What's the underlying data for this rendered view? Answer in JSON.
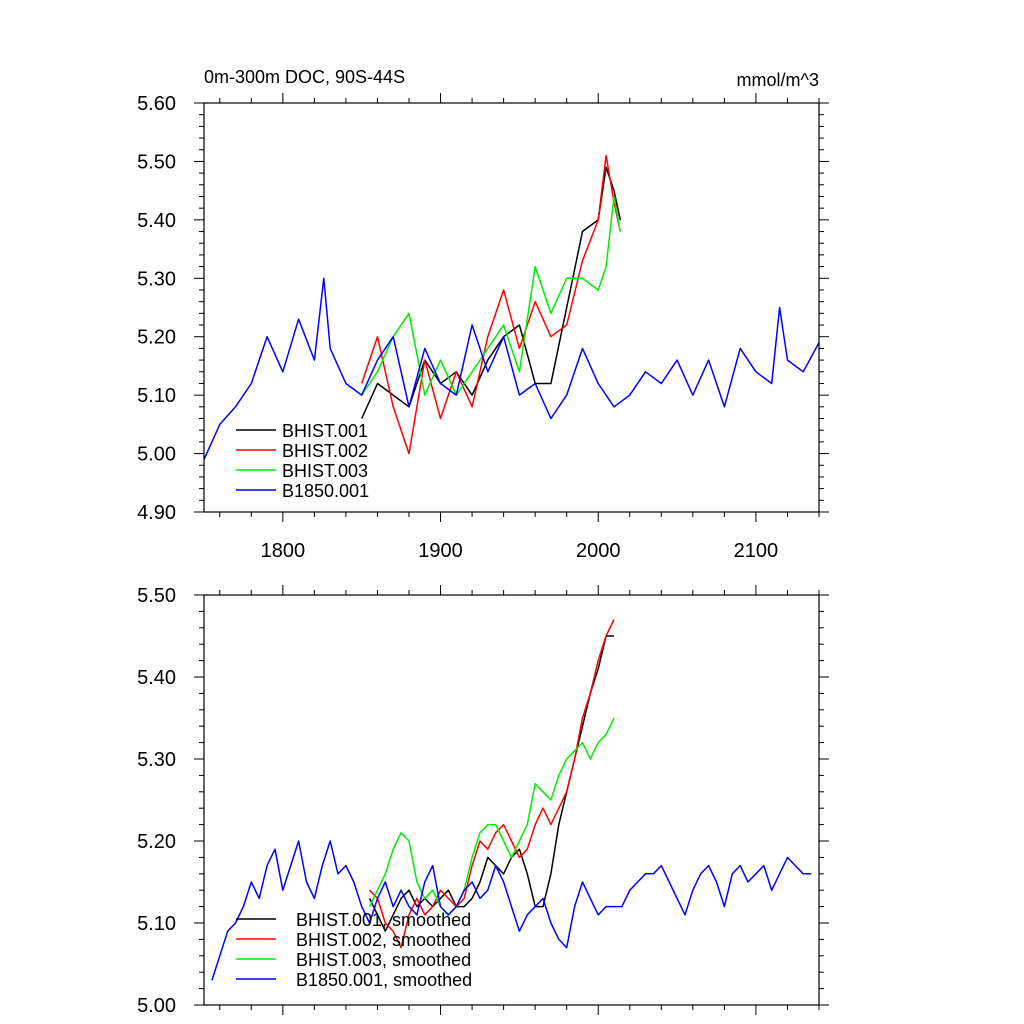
{
  "chart_data": [
    {
      "type": "line",
      "title": "0m-300m DOC, 90S-44S",
      "units": "mmol/m^3",
      "xlim": [
        1750,
        2140
      ],
      "ylim": [
        4.9,
        5.6
      ],
      "xticks": [
        1800,
        1900,
        2000,
        2100
      ],
      "xtick_labels": [
        "1800",
        "1900",
        "2000",
        "2100"
      ],
      "yticks": [
        4.9,
        5.0,
        5.1,
        5.2,
        5.3,
        5.4,
        5.5,
        5.6
      ],
      "ytick_labels": [
        "4.90",
        "5.00",
        "5.10",
        "5.20",
        "5.30",
        "5.40",
        "5.50",
        "5.60"
      ],
      "legend_position": "bottom-left",
      "series": [
        {
          "name": "BHIST.001",
          "color": "#000000",
          "x": [
            1850,
            1860,
            1870,
            1880,
            1890,
            1900,
            1910,
            1920,
            1930,
            1940,
            1950,
            1960,
            1970,
            1980,
            1990,
            2000,
            2005,
            2010,
            2014
          ],
          "values": [
            5.06,
            5.12,
            5.1,
            5.08,
            5.16,
            5.12,
            5.14,
            5.1,
            5.16,
            5.2,
            5.22,
            5.12,
            5.12,
            5.25,
            5.38,
            5.4,
            5.49,
            5.45,
            5.4
          ]
        },
        {
          "name": "BHIST.002",
          "color": "#ff0000",
          "x": [
            1850,
            1860,
            1870,
            1880,
            1890,
            1900,
            1910,
            1920,
            1930,
            1940,
            1950,
            1960,
            1970,
            1980,
            1990,
            2000,
            2005,
            2010,
            2014
          ],
          "values": [
            5.12,
            5.2,
            5.08,
            5.0,
            5.16,
            5.06,
            5.14,
            5.08,
            5.2,
            5.28,
            5.18,
            5.26,
            5.2,
            5.22,
            5.33,
            5.4,
            5.51,
            5.43,
            5.38
          ]
        },
        {
          "name": "BHIST.003",
          "color": "#00ee00",
          "x": [
            1850,
            1860,
            1870,
            1880,
            1890,
            1900,
            1910,
            1920,
            1930,
            1940,
            1950,
            1960,
            1970,
            1980,
            1990,
            2000,
            2005,
            2010,
            2014
          ],
          "values": [
            5.1,
            5.14,
            5.2,
            5.24,
            5.1,
            5.16,
            5.1,
            5.14,
            5.18,
            5.22,
            5.14,
            5.32,
            5.24,
            5.3,
            5.3,
            5.28,
            5.32,
            5.44,
            5.38
          ]
        },
        {
          "name": "B1850.001",
          "color": "#0000ff",
          "x": [
            1750,
            1760,
            1770,
            1780,
            1790,
            1800,
            1810,
            1820,
            1826,
            1830,
            1840,
            1850,
            1860,
            1870,
            1880,
            1890,
            1900,
            1910,
            1920,
            1930,
            1940,
            1950,
            1960,
            1970,
            1980,
            1990,
            2000,
            2010,
            2020,
            2030,
            2040,
            2050,
            2060,
            2070,
            2080,
            2090,
            2100,
            2110,
            2115,
            2120,
            2130,
            2140
          ],
          "values": [
            4.99,
            5.05,
            5.08,
            5.12,
            5.2,
            5.14,
            5.23,
            5.16,
            5.3,
            5.18,
            5.12,
            5.1,
            5.16,
            5.2,
            5.08,
            5.18,
            5.12,
            5.1,
            5.22,
            5.14,
            5.2,
            5.1,
            5.12,
            5.06,
            5.1,
            5.18,
            5.12,
            5.08,
            5.1,
            5.14,
            5.12,
            5.16,
            5.1,
            5.16,
            5.08,
            5.18,
            5.14,
            5.12,
            5.25,
            5.16,
            5.14,
            5.19
          ]
        }
      ]
    },
    {
      "type": "line",
      "title": "",
      "units": "",
      "xlim": [
        1750,
        2140
      ],
      "ylim": [
        5.0,
        5.5
      ],
      "xticks": [
        1800,
        1900,
        2000,
        2100
      ],
      "xtick_labels": [],
      "yticks": [
        5.0,
        5.1,
        5.2,
        5.3,
        5.4,
        5.5
      ],
      "ytick_labels": [
        "5.00",
        "5.10",
        "5.20",
        "5.30",
        "5.40",
        "5.50"
      ],
      "legend_position": "bottom-left",
      "series": [
        {
          "name": "BHIST.001, smoothed",
          "color": "#000000",
          "x": [
            1855,
            1860,
            1865,
            1870,
            1875,
            1880,
            1885,
            1890,
            1895,
            1900,
            1905,
            1910,
            1915,
            1920,
            1925,
            1930,
            1935,
            1940,
            1945,
            1950,
            1955,
            1960,
            1965,
            1970,
            1975,
            1980,
            1985,
            1990,
            1995,
            2000,
            2005,
            2010
          ],
          "values": [
            5.13,
            5.11,
            5.09,
            5.11,
            5.13,
            5.14,
            5.12,
            5.13,
            5.12,
            5.13,
            5.14,
            5.12,
            5.12,
            5.13,
            5.15,
            5.18,
            5.17,
            5.16,
            5.18,
            5.19,
            5.16,
            5.12,
            5.12,
            5.16,
            5.22,
            5.26,
            5.3,
            5.34,
            5.38,
            5.41,
            5.45,
            5.45
          ]
        },
        {
          "name": "BHIST.002, smoothed",
          "color": "#ff0000",
          "x": [
            1855,
            1860,
            1865,
            1870,
            1875,
            1880,
            1885,
            1890,
            1895,
            1900,
            1905,
            1910,
            1915,
            1920,
            1925,
            1930,
            1935,
            1940,
            1945,
            1950,
            1955,
            1960,
            1965,
            1970,
            1975,
            1980,
            1985,
            1990,
            1995,
            2000,
            2005,
            2010
          ],
          "values": [
            5.14,
            5.13,
            5.1,
            5.09,
            5.07,
            5.11,
            5.13,
            5.11,
            5.12,
            5.14,
            5.13,
            5.12,
            5.13,
            5.17,
            5.2,
            5.19,
            5.21,
            5.22,
            5.2,
            5.18,
            5.19,
            5.22,
            5.24,
            5.22,
            5.24,
            5.26,
            5.3,
            5.35,
            5.38,
            5.42,
            5.45,
            5.47
          ]
        },
        {
          "name": "BHIST.003, smoothed",
          "color": "#00ee00",
          "x": [
            1855,
            1860,
            1865,
            1870,
            1875,
            1880,
            1885,
            1890,
            1895,
            1900,
            1905,
            1910,
            1915,
            1920,
            1925,
            1930,
            1935,
            1940,
            1945,
            1950,
            1955,
            1960,
            1965,
            1970,
            1975,
            1980,
            1985,
            1990,
            1995,
            2000,
            2005,
            2010
          ],
          "values": [
            5.12,
            5.14,
            5.16,
            5.19,
            5.21,
            5.2,
            5.15,
            5.13,
            5.14,
            5.12,
            5.11,
            5.12,
            5.14,
            5.18,
            5.21,
            5.22,
            5.22,
            5.2,
            5.18,
            5.2,
            5.22,
            5.27,
            5.26,
            5.25,
            5.28,
            5.3,
            5.31,
            5.32,
            5.3,
            5.32,
            5.33,
            5.35
          ]
        },
        {
          "name": "B1850.001, smoothed",
          "color": "#0000ff",
          "x": [
            1755,
            1760,
            1765,
            1770,
            1775,
            1780,
            1785,
            1790,
            1795,
            1800,
            1805,
            1810,
            1815,
            1820,
            1825,
            1830,
            1835,
            1840,
            1845,
            1850,
            1855,
            1860,
            1865,
            1870,
            1875,
            1880,
            1885,
            1890,
            1895,
            1900,
            1905,
            1910,
            1915,
            1920,
            1925,
            1930,
            1935,
            1940,
            1945,
            1950,
            1955,
            1960,
            1965,
            1970,
            1975,
            1980,
            1985,
            1990,
            1995,
            2000,
            2005,
            2010,
            2015,
            2020,
            2025,
            2030,
            2035,
            2040,
            2045,
            2050,
            2055,
            2060,
            2065,
            2070,
            2075,
            2080,
            2085,
            2090,
            2095,
            2100,
            2105,
            2110,
            2115,
            2120,
            2125,
            2130,
            2135
          ],
          "values": [
            5.03,
            5.06,
            5.09,
            5.1,
            5.12,
            5.15,
            5.13,
            5.17,
            5.19,
            5.14,
            5.17,
            5.2,
            5.15,
            5.13,
            5.17,
            5.2,
            5.16,
            5.17,
            5.15,
            5.12,
            5.1,
            5.13,
            5.15,
            5.12,
            5.14,
            5.12,
            5.11,
            5.15,
            5.17,
            5.12,
            5.11,
            5.12,
            5.14,
            5.15,
            5.13,
            5.14,
            5.17,
            5.15,
            5.12,
            5.09,
            5.11,
            5.12,
            5.13,
            5.1,
            5.08,
            5.07,
            5.12,
            5.15,
            5.13,
            5.11,
            5.12,
            5.12,
            5.12,
            5.14,
            5.15,
            5.16,
            5.16,
            5.17,
            5.15,
            5.13,
            5.11,
            5.14,
            5.16,
            5.17,
            5.15,
            5.12,
            5.16,
            5.17,
            5.15,
            5.16,
            5.17,
            5.14,
            5.16,
            5.18,
            5.17,
            5.16,
            5.16
          ]
        }
      ]
    }
  ]
}
